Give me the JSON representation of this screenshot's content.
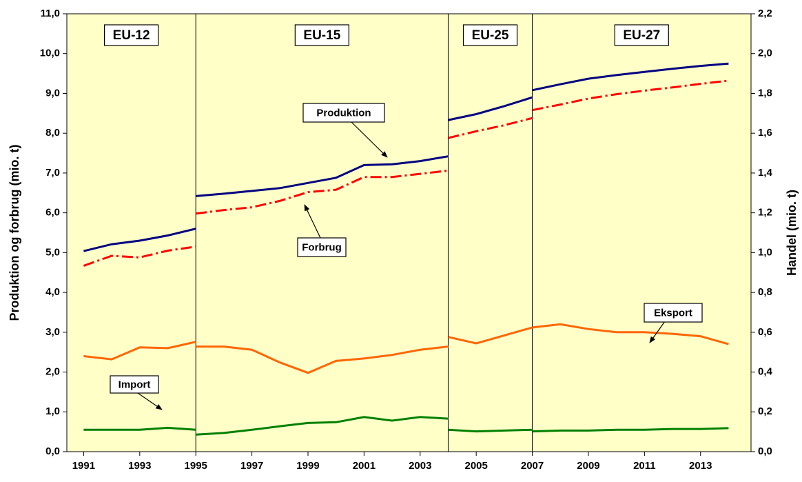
{
  "chart_data": {
    "type": "line",
    "y_label": "Produktion og forbrug (mio. t)",
    "y2_label": "Handel (mio. t)",
    "xlim": [
      1990.4,
      2014.8
    ],
    "xticks": [
      1991,
      1993,
      1995,
      1997,
      1999,
      2001,
      2003,
      2005,
      2007,
      2009,
      2011,
      2013
    ],
    "ylim": [
      0,
      11
    ],
    "yticks": [
      {
        "value": 0,
        "label": "0,0"
      },
      {
        "value": 1,
        "label": "1,0"
      },
      {
        "value": 2,
        "label": "2,0"
      },
      {
        "value": 3,
        "label": "3,0"
      },
      {
        "value": 4,
        "label": "4,0"
      },
      {
        "value": 5,
        "label": "5,0"
      },
      {
        "value": 6,
        "label": "6,0"
      },
      {
        "value": 7,
        "label": "7,0"
      },
      {
        "value": 8,
        "label": "8,0"
      },
      {
        "value": 9,
        "label": "9,0"
      },
      {
        "value": 10,
        "label": "10,0"
      },
      {
        "value": 11,
        "label": "11,0"
      }
    ],
    "y2lim": [
      0,
      2.2
    ],
    "y2ticks": [
      {
        "value": 0,
        "label": "0,0"
      },
      {
        "value": 0.2,
        "label": "0,2"
      },
      {
        "value": 0.4,
        "label": "0,4"
      },
      {
        "value": 0.6,
        "label": "0,6"
      },
      {
        "value": 0.8,
        "label": "0,8"
      },
      {
        "value": 1,
        "label": "1,0"
      },
      {
        "value": 1.2,
        "label": "1,2"
      },
      {
        "value": 1.4,
        "label": "1,4"
      },
      {
        "value": 1.6,
        "label": "1,6"
      },
      {
        "value": 1.8,
        "label": "1,8"
      },
      {
        "value": 2,
        "label": "2,0"
      },
      {
        "value": 2.2,
        "label": "2,2"
      }
    ],
    "grid": false,
    "background": "#ffffc8",
    "periods": [
      {
        "label": "EU-12",
        "x": [
          1991,
          1992,
          1993,
          1994,
          1995
        ]
      },
      {
        "label": "EU-15",
        "x": [
          1995,
          1996,
          1997,
          1998,
          1999,
          2000,
          2001,
          2002,
          2003,
          2004
        ]
      },
      {
        "label": "EU-25",
        "x": [
          2004,
          2005,
          2006,
          2007
        ]
      },
      {
        "label": "EU-27",
        "x": [
          2007,
          2008,
          2009,
          2010,
          2011,
          2012,
          2013,
          2014
        ]
      }
    ],
    "series": [
      {
        "name": "Produktion",
        "color": "#000080",
        "dashed": false,
        "values": [
          [
            5.04,
            5.21,
            5.3,
            5.43,
            5.6
          ],
          [
            6.42,
            6.48,
            6.55,
            6.62,
            6.75,
            6.88,
            7.2,
            7.22,
            7.3,
            7.42
          ],
          [
            8.33,
            8.48,
            8.68,
            8.9
          ],
          [
            9.08,
            9.23,
            9.37,
            9.46,
            9.54,
            9.62,
            9.69,
            9.75
          ]
        ]
      },
      {
        "name": "Forbrug",
        "color": "#ff0000",
        "dashed": true,
        "values": [
          [
            4.67,
            4.92,
            4.88,
            5.05,
            5.15
          ],
          [
            5.98,
            6.07,
            6.14,
            6.3,
            6.52,
            6.58,
            6.9,
            6.9,
            6.98,
            7.06
          ],
          [
            7.88,
            8.05,
            8.2,
            8.38
          ],
          [
            8.58,
            8.72,
            8.87,
            8.98,
            9.07,
            9.15,
            9.24,
            9.32
          ]
        ]
      },
      {
        "name": "Eksport",
        "color": "#ff6600",
        "dashed": false,
        "axis": "y2",
        "values": [
          [
            0.48,
            0.464,
            0.524,
            0.52,
            0.552
          ],
          [
            0.528,
            0.528,
            0.512,
            0.448,
            0.396,
            0.456,
            0.468,
            0.486,
            0.512,
            0.528
          ],
          [
            0.576,
            0.544,
            0.584,
            0.624
          ],
          [
            0.624,
            0.64,
            0.616,
            0.6,
            0.6,
            0.592,
            0.58,
            0.54
          ]
        ]
      },
      {
        "name": "Import",
        "color": "#008000",
        "dashed": false,
        "axis": "y2",
        "values": [
          [
            0.11,
            0.11,
            0.11,
            0.12,
            0.11
          ],
          [
            0.086,
            0.094,
            0.11,
            0.128,
            0.144,
            0.148,
            0.174,
            0.156,
            0.174,
            0.166
          ],
          [
            0.11,
            0.102,
            0.106,
            0.11
          ],
          [
            0.102,
            0.106,
            0.106,
            0.11,
            0.11,
            0.114,
            0.114,
            0.118
          ]
        ]
      }
    ]
  }
}
